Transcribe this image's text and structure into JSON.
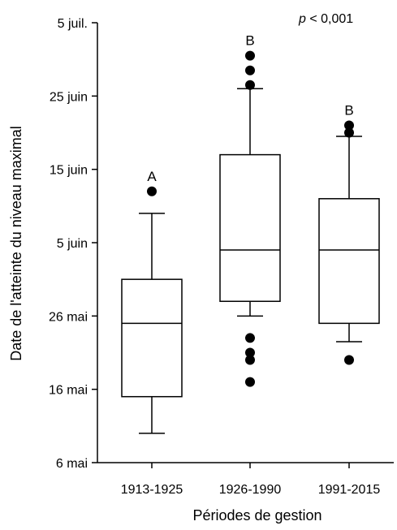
{
  "chart_data": {
    "type": "box",
    "title": "",
    "xlabel": "Périodes de gestion",
    "ylabel": "Date de l'atteinte du niveau maximal",
    "y_axis": {
      "unit": "day of year",
      "range": [
        126,
        186
      ],
      "ticks": [
        {
          "value": 126,
          "label": "6 mai"
        },
        {
          "value": 136,
          "label": "16 mai"
        },
        {
          "value": 146,
          "label": "26 mai"
        },
        {
          "value": 156,
          "label": "5 juin"
        },
        {
          "value": 166,
          "label": "15 juin"
        },
        {
          "value": 176,
          "label": "25 juin"
        },
        {
          "value": 186,
          "label": "5 juil."
        }
      ]
    },
    "annotation": {
      "italic": "p",
      "text": " < 0,001"
    },
    "categories": [
      "1913-1925",
      "1926-1990",
      "1991-2015"
    ],
    "boxes": [
      {
        "category": "1913-1925",
        "letter": "A",
        "whisker_low": 130,
        "q1": 135,
        "median": 145,
        "q3": 151,
        "whisker_high": 160,
        "outliers": [
          163
        ]
      },
      {
        "category": "1926-1990",
        "letter": "B",
        "whisker_low": 146,
        "q1": 148,
        "median": 155,
        "q3": 168,
        "whisker_high": 177,
        "outliers": [
          137,
          140,
          141,
          143,
          177.5,
          179.5,
          181.5
        ]
      },
      {
        "category": "1991-2015",
        "letter": "B",
        "whisker_low": 142.5,
        "q1": 145,
        "median": 155,
        "q3": 162,
        "whisker_high": 170.5,
        "outliers": [
          140,
          171,
          172
        ]
      }
    ]
  }
}
